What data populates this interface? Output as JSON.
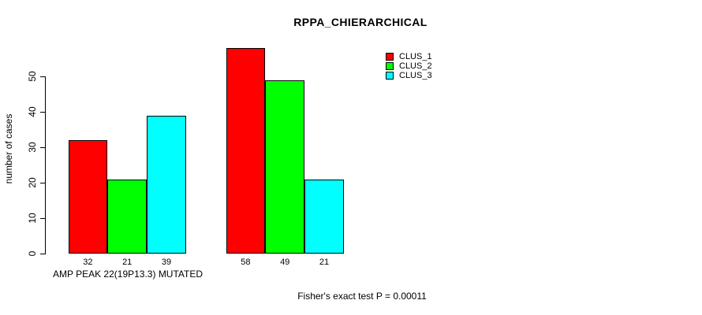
{
  "chart_data": {
    "type": "bar",
    "title": "RPPA_CHIERARCHICAL",
    "ylabel": "number of cases",
    "xlabel": "",
    "ylim": [
      0,
      50
    ],
    "yticks": [
      0,
      10,
      20,
      30,
      40,
      50
    ],
    "grid": false,
    "legend_position": "top-right",
    "categories": [
      "AMP PEAK 22(19P13.3) MUTATED",
      ""
    ],
    "series": [
      {
        "name": "CLUS_1",
        "color": "#ff0000",
        "values": [
          32,
          58
        ]
      },
      {
        "name": "CLUS_2",
        "color": "#00ff00",
        "values": [
          21,
          49
        ]
      },
      {
        "name": "CLUS_3",
        "color": "#00ffff",
        "values": [
          39,
          21
        ]
      }
    ],
    "bar_value_labels": [
      [
        "32",
        "21",
        "39"
      ],
      [
        "58",
        "49",
        "21"
      ]
    ]
  },
  "footer": {
    "text": "Fisher's exact test P = 0.00011"
  },
  "colors": {
    "background": "#ffffff",
    "axis": "#000000",
    "text": "#000000"
  }
}
